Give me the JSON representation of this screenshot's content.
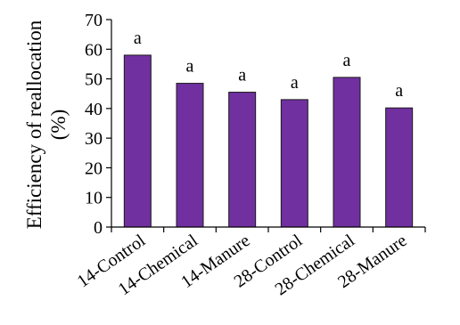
{
  "chart_data": {
    "type": "bar",
    "title": "",
    "xlabel": "",
    "ylabel_lines": [
      "Efficiency of reallocation",
      "(%)"
    ],
    "categories": [
      "14-Control",
      "14-Chemical",
      "14-Manure",
      "28-Control",
      "28-Chemical",
      "28-Manure"
    ],
    "values": [
      58,
      48.5,
      45.5,
      43,
      50.5,
      40.2
    ],
    "significance": [
      "a",
      "a",
      "a",
      "a",
      "a",
      "a"
    ],
    "ylim": [
      0,
      70
    ],
    "yticks": [
      0,
      10,
      20,
      30,
      40,
      50,
      60,
      70
    ],
    "grid": false,
    "legend": "none",
    "bar_color": "#7030a0"
  }
}
